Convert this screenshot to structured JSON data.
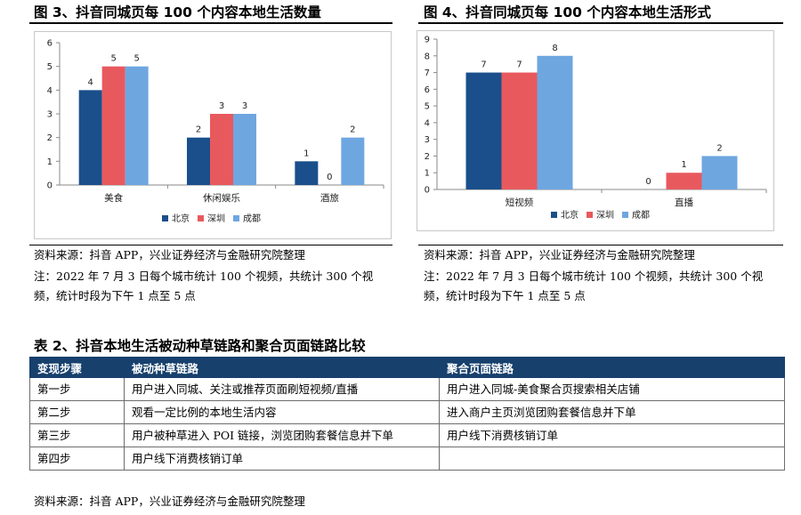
{
  "figure3": {
    "title": "图 3、抖音同城页每 100 个内容本地生活数量",
    "source": "资料来源：抖音 APP，兴业证券经济与金融研究院整理",
    "note": "注：2022 年 7 月 3 日每个城市统计 100 个视频，共统计 300 个视频，统计时段为下午 1 点至 5 点"
  },
  "figure4": {
    "title": "图 4、抖音同城页每 100 个内容本地生活形式",
    "source": "资料来源：抖音 APP，兴业证券经济与金融研究院整理",
    "note": "注：2022 年 7 月 3 日每个城市统计 100 个视频，共统计 300 个视频，统计时段为下午 1 点至 5 点"
  },
  "chart_data": [
    {
      "type": "bar",
      "title": "",
      "categories": [
        "美食",
        "休闲娱乐",
        "酒旅"
      ],
      "series": [
        {
          "name": "北京",
          "values": [
            4,
            2,
            1
          ],
          "color": "#1a4f8b"
        },
        {
          "name": "深圳",
          "values": [
            5,
            3,
            0
          ],
          "color": "#e8595e"
        },
        {
          "name": "成都",
          "values": [
            5,
            3,
            2
          ],
          "color": "#6ea6e0"
        }
      ],
      "yticks": [
        "0",
        "1",
        "2",
        "3",
        "4",
        "5",
        "6"
      ],
      "ylim": [
        0,
        6
      ],
      "grid": false,
      "legend": "bottom"
    },
    {
      "type": "bar",
      "title": "",
      "categories": [
        "短视频",
        "直播"
      ],
      "series": [
        {
          "name": "北京",
          "values": [
            7,
            0
          ],
          "color": "#1a4f8b"
        },
        {
          "name": "深圳",
          "values": [
            7,
            1
          ],
          "color": "#e8595e"
        },
        {
          "name": "成都",
          "values": [
            8,
            2
          ],
          "color": "#6ea6e0"
        }
      ],
      "yticks": [
        "0",
        "1",
        "2",
        "3",
        "4",
        "5",
        "6",
        "7",
        "8",
        "9"
      ],
      "ylim": [
        0,
        9
      ],
      "grid": false,
      "legend": "bottom"
    }
  ],
  "table2": {
    "title": "表 2、抖音本地生活被动种草链路和聚合页面链路比较",
    "headers": [
      "变现步骤",
      "被动种草链路",
      "聚合页面链路"
    ],
    "rows": [
      [
        "第一步",
        "用户进入同城、关注或推荐页面刷短视频/直播",
        "用户进入同城-美食聚合页搜索相关店铺"
      ],
      [
        "第二步",
        "观看一定比例的本地生活内容",
        "进入商户主页浏览团购套餐信息并下单"
      ],
      [
        "第三步",
        "用户被种草进入 POI 链接，浏览团购套餐信息并下单",
        "用户线下消费核销订单"
      ],
      [
        "第四步",
        "用户线下消费核销订单",
        ""
      ]
    ],
    "source": "资料来源：抖音 APP，兴业证券经济与金融研究院整理"
  }
}
